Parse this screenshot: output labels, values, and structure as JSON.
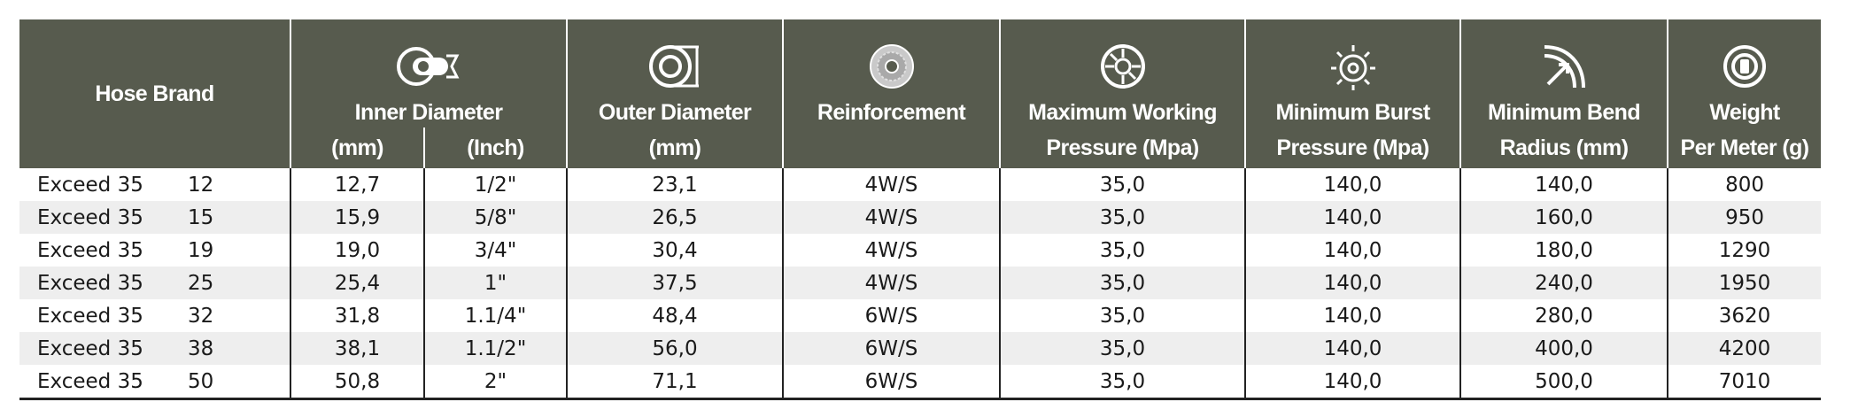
{
  "table": {
    "headers": {
      "hose_brand": "Hose Brand",
      "inner_diameter": "Inner Diameter",
      "inner_mm": "(mm)",
      "inner_inch": "(Inch)",
      "outer_diameter": "Outer Diameter",
      "outer_mm": "(mm)",
      "reinforcement": "Reinforcement",
      "max_working_1": "Maximum Working",
      "max_working_2": "Pressure (Mpa)",
      "min_burst_1": "Minimum Burst",
      "min_burst_2": "Pressure (Mpa)",
      "min_bend_1": "Minimum Bend",
      "min_bend_2": "Radius (mm)",
      "weight_1": "Weight",
      "weight_2": "Per Meter (g)"
    },
    "icons": {
      "inner_diameter": "inner-diameter-icon",
      "outer_diameter": "outer-diameter-icon",
      "reinforcement": "reinforcement-icon",
      "max_working": "pressure-gauge-icon",
      "min_burst": "burst-pressure-icon",
      "min_bend": "bend-radius-icon",
      "weight": "weight-icon"
    },
    "colors": {
      "header_bg": "#575b4e",
      "stripe": "#eeeeee"
    },
    "rows": [
      [
        "Exceed 35",
        "12",
        "12,7",
        "1/2\"",
        "23,1",
        "4W/S",
        "35,0",
        "140,0",
        "140,0",
        "800"
      ],
      [
        "Exceed 35",
        "15",
        "15,9",
        "5/8\"",
        "26,5",
        "4W/S",
        "35,0",
        "140,0",
        "160,0",
        "950"
      ],
      [
        "Exceed 35",
        "19",
        "19,0",
        "3/4\"",
        "30,4",
        "4W/S",
        "35,0",
        "140,0",
        "180,0",
        "1290"
      ],
      [
        "Exceed 35",
        "25",
        "25,4",
        "1\"",
        "37,5",
        "4W/S",
        "35,0",
        "140,0",
        "240,0",
        "1950"
      ],
      [
        "Exceed 35",
        "32",
        "31,8",
        "1.1/4\"",
        "48,4",
        "6W/S",
        "35,0",
        "140,0",
        "280,0",
        "3620"
      ],
      [
        "Exceed 35",
        "38",
        "38,1",
        "1.1/2\"",
        "56,0",
        "6W/S",
        "35,0",
        "140,0",
        "400,0",
        "4200"
      ],
      [
        "Exceed 35",
        "50",
        "50,8",
        "2\"",
        "71,1",
        "6W/S",
        "35,0",
        "140,0",
        "500,0",
        "7010"
      ]
    ]
  }
}
